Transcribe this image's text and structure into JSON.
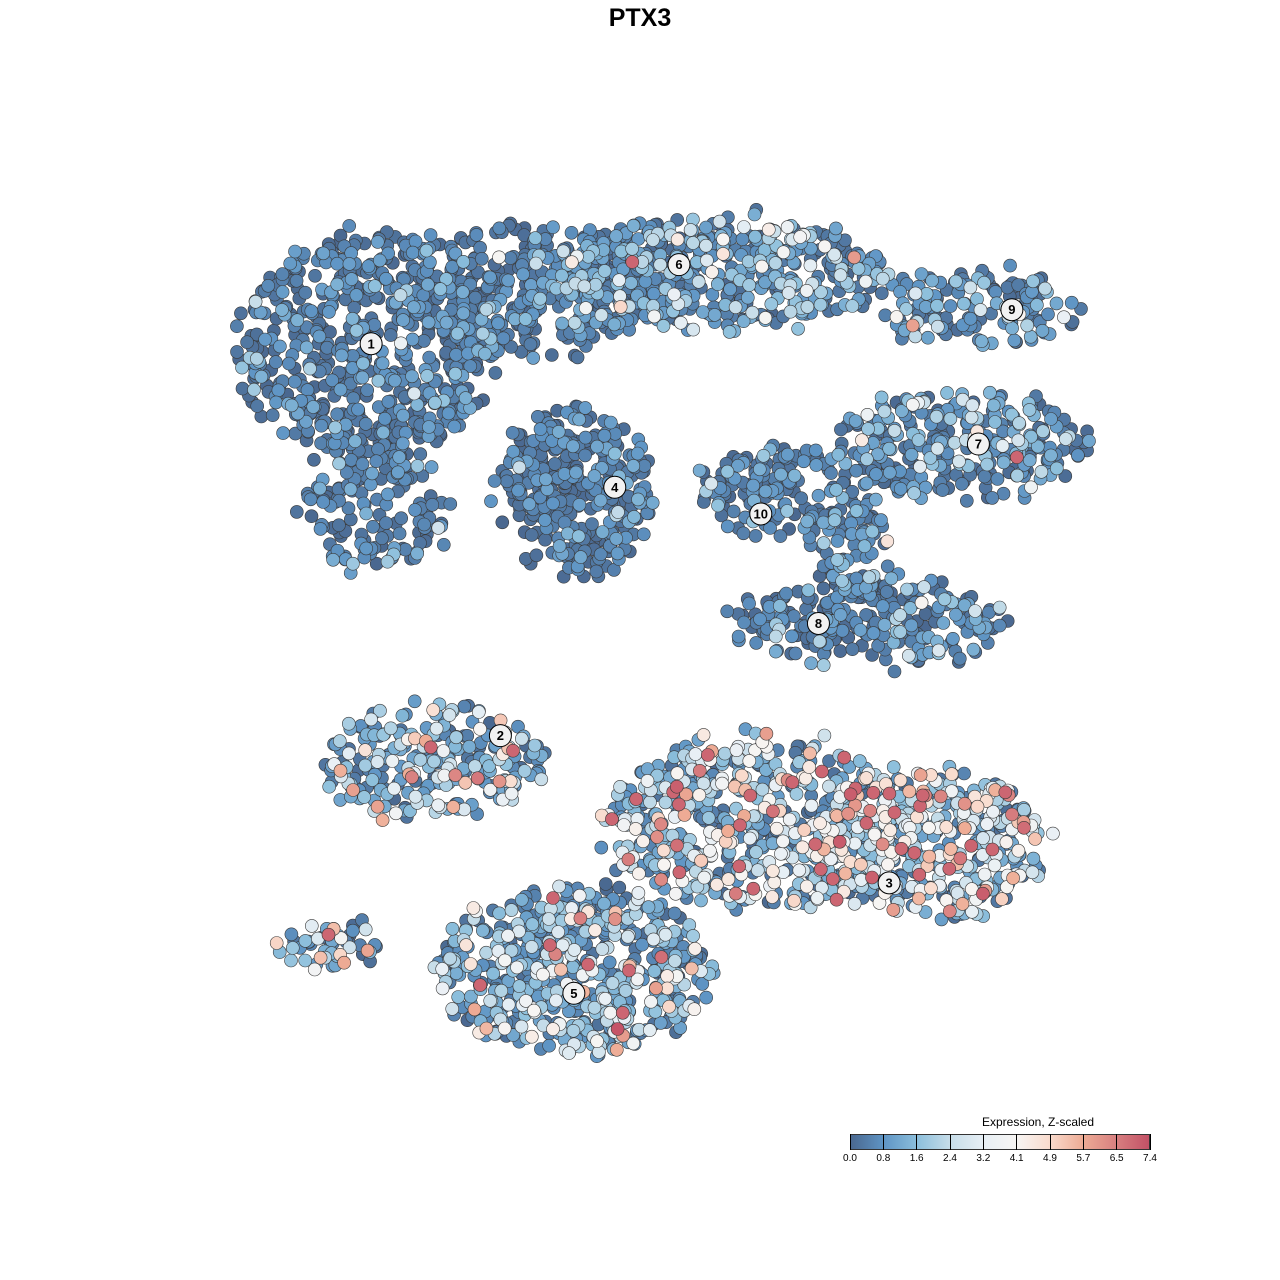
{
  "chart_data": {
    "type": "scatter",
    "title": "PTX3",
    "xlabel": "",
    "ylabel": "",
    "axes_visible": false,
    "grid": false,
    "xlim": [
      0,
      100
    ],
    "ylim": [
      0,
      100
    ],
    "legend": {
      "title": "Expression, Z-scaled",
      "placement": "bottom-right",
      "ticks": [
        "0.0",
        "0.8",
        "1.6",
        "2.4",
        "3.2",
        "4.1",
        "4.9",
        "5.7",
        "6.5",
        "7.4"
      ],
      "range": [
        0,
        7.4
      ],
      "colors": [
        "#4a6890",
        "#5f95c5",
        "#8cbfdc",
        "#c7dde9",
        "#e7eff5",
        "#f7f5f3",
        "#f9dbcd",
        "#eeac95",
        "#d88080",
        "#c35166"
      ]
    },
    "clusters": [
      {
        "label": "1",
        "x": 18.4,
        "y": 82.2,
        "mean_expression": 0.6,
        "blobs": [
          [
            18,
            82,
            14,
            12,
            600
          ],
          [
            35,
            88,
            14,
            7,
            350
          ],
          [
            19,
            64,
            8,
            7,
            150
          ]
        ]
      },
      {
        "label": "2",
        "x": 32.3,
        "y": 39.6,
        "mean_expression": 1.9,
        "blobs": [
          [
            25,
            37,
            12,
            6,
            260
          ]
        ]
      },
      {
        "label": "3",
        "x": 74.1,
        "y": 23.6,
        "mean_expression": 2.8,
        "blobs": [
          [
            60,
            30,
            17,
            9,
            550
          ],
          [
            78,
            28,
            13,
            8,
            450
          ]
        ]
      },
      {
        "label": "4",
        "x": 44.6,
        "y": 66.6,
        "mean_expression": 0.5,
        "blobs": [
          [
            40.3,
            66.3,
            8,
            9,
            350
          ]
        ]
      },
      {
        "label": "5",
        "x": 40.2,
        "y": 11.6,
        "mean_expression": 1.8,
        "blobs": [
          [
            40,
            14,
            15,
            9,
            600
          ]
        ]
      },
      {
        "label": "6",
        "x": 51.5,
        "y": 90.8,
        "mean_expression": 1.2,
        "blobs": [
          [
            56,
            90,
            18,
            6,
            500
          ]
        ]
      },
      {
        "label": "7",
        "x": 83.7,
        "y": 71.3,
        "mean_expression": 1.2,
        "blobs": [
          [
            82,
            71,
            14,
            6,
            300
          ]
        ]
      },
      {
        "label": "8",
        "x": 66.5,
        "y": 51.8,
        "mean_expression": 0.8,
        "blobs": [
          [
            72,
            52,
            15,
            5,
            250
          ],
          [
            70,
            60,
            4,
            6,
            80
          ]
        ]
      },
      {
        "label": "9",
        "x": 87.3,
        "y": 85.9,
        "mean_expression": 1.0,
        "blobs": [
          [
            84,
            86,
            11,
            4,
            150
          ]
        ]
      },
      {
        "label": "10",
        "x": 60.3,
        "y": 63.7,
        "mean_expression": 0.6,
        "blobs": [
          [
            62,
            66,
            8,
            5,
            150
          ]
        ]
      },
      {
        "label": "",
        "x": 13,
        "y": 18,
        "mean_expression": 2.4,
        "blobs": [
          [
            13,
            17,
            6,
            3,
            50
          ]
        ]
      }
    ]
  }
}
